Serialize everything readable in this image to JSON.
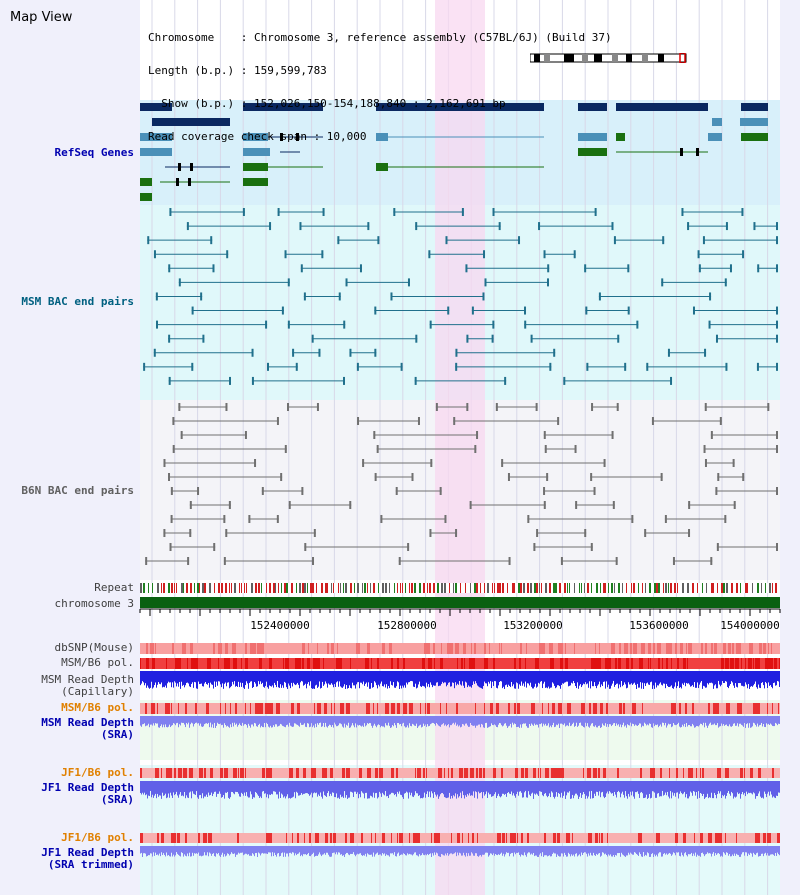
{
  "app": {
    "title": "Map View"
  },
  "info": {
    "line1": "Chromosome    : Chromosome 3, reference assembly (C57BL/6J) (Build 37)",
    "line2": "Length (b.p.) : 159,599,783",
    "line3": "  Show (b.p.) : 152,026,150-154,188,840 : 2,162,691 bp",
    "line4": "Read coverage check span : 10,000"
  },
  "tracks": {
    "refseq": "RefSeq Genes",
    "msm_bac": "MSM BAC end pairs",
    "b6n_bac": "B6N BAC end pairs",
    "repeat": "Repeat",
    "chromosome": "chromosome 3",
    "dbsnp": "dbSNP(Mouse)",
    "msm_b6_pol": "MSM/B6 pol.",
    "msm_depth_cap_1": "MSM Read Depth",
    "msm_depth_cap_2": "(Capillary)",
    "msm_b6_pol_sra": "MSM/B6 pol.",
    "msm_depth_sra_1": "MSM Read Depth",
    "msm_depth_sra_2": "(SRA)",
    "jf1_b6_pol": "JF1/B6 pol.",
    "jf1_depth_sra_1": "JF1 Read Depth",
    "jf1_depth_sra_2": "(SRA)",
    "jf1_b6_pol_2": "JF1/B6 pol.",
    "jf1_depth_trim_1": "JF1 Read Depth",
    "jf1_depth_trim_2": "(SRA trimmed)"
  },
  "axis": {
    "ticks": [
      "152400000",
      "152800000",
      "153200000",
      "153600000",
      "154000000"
    ]
  },
  "colors": {
    "refseq_bg": "#d8f0fa",
    "msm_bg": "#e0f8fa",
    "highlight": "#f8d8f0",
    "gene_dark": "#0a2860",
    "gene_mid": "#4a90b8",
    "gene_green": "#1a7010",
    "bac_teal": "#20708c",
    "bac_gray": "#707070",
    "chrom_bar": "#0a6010",
    "pol_red": "#f03030",
    "depth_blue": "#2020e0",
    "depth_light": "#8080f0"
  }
}
